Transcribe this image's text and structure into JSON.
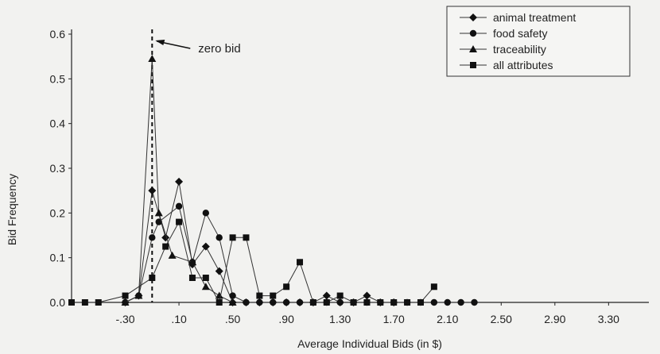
{
  "chart_data": {
    "type": "line",
    "title": "",
    "xlabel": "Average Individual Bids (in $)",
    "ylabel": "Bid Frequency",
    "x": [
      -0.7,
      -0.5,
      -0.3,
      -0.1,
      0.0,
      0.1,
      0.2,
      0.3,
      0.4,
      0.5,
      0.6,
      0.7,
      0.8,
      0.9,
      1.0,
      1.1,
      1.2,
      1.3,
      1.4,
      1.5,
      1.6,
      1.7,
      1.8,
      1.9,
      2.0,
      2.1,
      2.2,
      2.3,
      2.4,
      2.5,
      2.6,
      2.7,
      2.8,
      2.9,
      3.0,
      3.1,
      3.2,
      3.3,
      3.4,
      3.5,
      3.6
    ],
    "xlim": [
      -0.7,
      3.6
    ],
    "ylim": [
      0,
      0.6
    ],
    "x_ticks": [
      -0.3,
      0.1,
      0.5,
      0.9,
      1.3,
      1.7,
      2.1,
      2.5,
      2.9,
      3.3
    ],
    "x_tick_labels": [
      "-.30",
      ".10",
      ".50",
      ".90",
      "1.30",
      "1.70",
      "2.10",
      "2.50",
      "2.90",
      "3.30"
    ],
    "y_ticks": [
      0.0,
      0.1,
      0.2,
      0.3,
      0.4,
      0.5,
      0.6
    ],
    "y_tick_labels": [
      "0.0",
      "0.1",
      "0.2",
      "0.3",
      "0.4",
      "0.5",
      "0.6"
    ],
    "grid": false,
    "legend_position": "top-right",
    "series": [
      {
        "name": "animal treatment",
        "marker": "diamond",
        "points": [
          [
            -0.3,
            0.0
          ],
          [
            -0.2,
            0.015
          ],
          [
            -0.1,
            0.25
          ],
          [
            0.0,
            0.145
          ],
          [
            0.1,
            0.27
          ],
          [
            0.2,
            0.085
          ],
          [
            0.3,
            0.125
          ],
          [
            0.4,
            0.07
          ],
          [
            0.5,
            0.0
          ],
          [
            0.6,
            0.0
          ],
          [
            0.7,
            0.0
          ],
          [
            0.8,
            0.0
          ],
          [
            0.9,
            0.0
          ],
          [
            1.0,
            0.0
          ],
          [
            1.1,
            0.0
          ],
          [
            1.2,
            0.015
          ],
          [
            1.3,
            0.0
          ],
          [
            1.4,
            0.0
          ],
          [
            1.5,
            0.015
          ],
          [
            1.6,
            0.0
          ],
          [
            1.7,
            0.0
          ]
        ]
      },
      {
        "name": "food safety",
        "marker": "circle",
        "points": [
          [
            -0.3,
            0.0
          ],
          [
            -0.2,
            0.015
          ],
          [
            -0.1,
            0.145
          ],
          [
            -0.05,
            0.18
          ],
          [
            0.1,
            0.215
          ],
          [
            0.2,
            0.09
          ],
          [
            0.3,
            0.2
          ],
          [
            0.4,
            0.145
          ],
          [
            0.5,
            0.015
          ],
          [
            0.6,
            0.0
          ],
          [
            0.7,
            0.0
          ],
          [
            0.8,
            0.0
          ],
          [
            0.9,
            0.0
          ],
          [
            1.0,
            0.0
          ],
          [
            1.1,
            0.0
          ],
          [
            1.2,
            0.0
          ],
          [
            1.3,
            0.0
          ],
          [
            1.4,
            0.0
          ],
          [
            1.5,
            0.0
          ],
          [
            1.6,
            0.0
          ],
          [
            1.7,
            0.0
          ],
          [
            1.8,
            0.0
          ],
          [
            1.9,
            0.0
          ],
          [
            2.0,
            0.0
          ],
          [
            2.1,
            0.0
          ],
          [
            2.2,
            0.0
          ],
          [
            2.3,
            0.0
          ]
        ]
      },
      {
        "name": "traceability",
        "marker": "triangle",
        "points": [
          [
            -0.3,
            0.0
          ],
          [
            -0.2,
            0.015
          ],
          [
            -0.1,
            0.545
          ],
          [
            -0.05,
            0.2
          ],
          [
            0.05,
            0.105
          ],
          [
            0.2,
            0.09
          ],
          [
            0.3,
            0.035
          ],
          [
            0.4,
            0.015
          ],
          [
            0.5,
            0.0
          ]
        ]
      },
      {
        "name": "all attributes",
        "marker": "square",
        "points": [
          [
            -0.7,
            0.0
          ],
          [
            -0.6,
            0.0
          ],
          [
            -0.5,
            0.0
          ],
          [
            -0.3,
            0.015
          ],
          [
            -0.1,
            0.055
          ],
          [
            0.0,
            0.125
          ],
          [
            0.1,
            0.18
          ],
          [
            0.2,
            0.055
          ],
          [
            0.3,
            0.055
          ],
          [
            0.4,
            0.0
          ],
          [
            0.5,
            0.145
          ],
          [
            0.6,
            0.145
          ],
          [
            0.7,
            0.015
          ],
          [
            0.8,
            0.015
          ],
          [
            0.9,
            0.035
          ],
          [
            1.0,
            0.09
          ],
          [
            1.1,
            0.0
          ],
          [
            1.2,
            0.0
          ],
          [
            1.3,
            0.015
          ],
          [
            1.4,
            0.0
          ],
          [
            1.5,
            0.0
          ],
          [
            1.6,
            0.0
          ],
          [
            1.7,
            0.0
          ],
          [
            1.8,
            0.0
          ],
          [
            1.9,
            0.0
          ],
          [
            2.0,
            0.035
          ]
        ]
      }
    ],
    "annotations": [
      {
        "text": "zero bid",
        "x": -0.1
      }
    ],
    "reference_line": {
      "x": -0.1,
      "style": "dashed"
    }
  }
}
